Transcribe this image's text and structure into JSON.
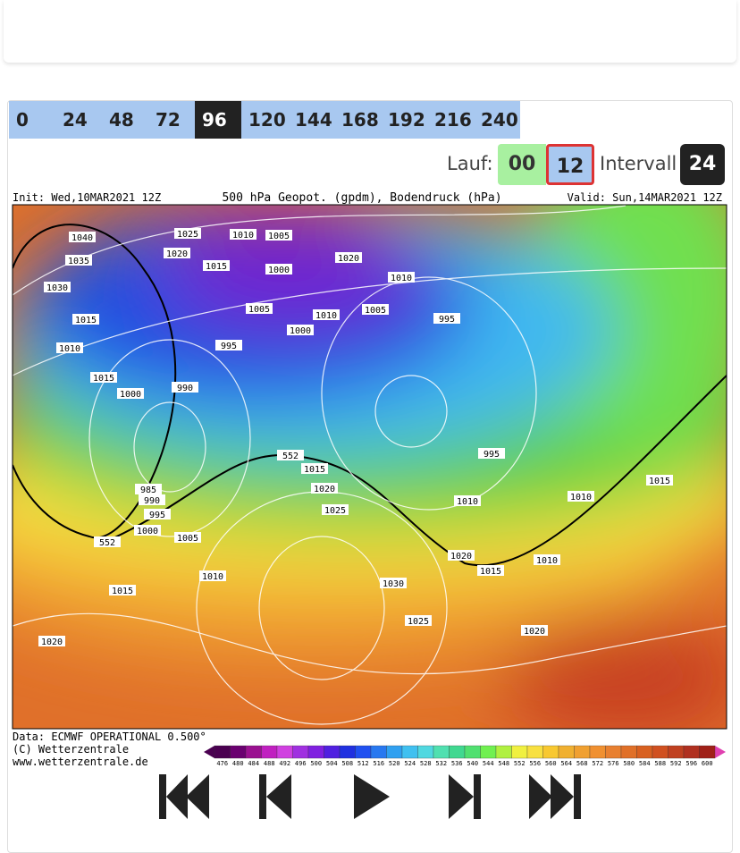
{
  "hours": [
    "0",
    "24",
    "48",
    "72",
    "96",
    "120",
    "144",
    "168",
    "192",
    "216",
    "240"
  ],
  "selected_hour": "96",
  "run": {
    "label": "Lauf:",
    "options": [
      "00",
      "12"
    ],
    "selected": "12"
  },
  "interval": {
    "label": "Intervall",
    "value": "24"
  },
  "map": {
    "init": "Init: Wed,10MAR2021 12Z",
    "title": "500 hPa Geopot. (gpdm), Bodendruck (hPa)",
    "valid": "Valid: Sun,14MAR2021 12Z",
    "isobar_labels": [
      "1040",
      "1035",
      "1030",
      "1025",
      "1020",
      "1015",
      "1010",
      "1005",
      "1000",
      "995",
      "990",
      "985",
      "1015",
      "1010",
      "1005",
      "1000",
      "995",
      "1020",
      "1010",
      "1015",
      "1005",
      "1000",
      "1010",
      "995",
      "1015",
      "1020",
      "1025",
      "1005",
      "1000",
      "995",
      "990",
      "1010",
      "1015",
      "1020",
      "1030",
      "1025",
      "1020",
      "1010",
      "1010",
      "1015",
      "1020",
      "1015",
      "1010",
      "552",
      "552"
    ],
    "scale": [
      476,
      480,
      484,
      488,
      492,
      496,
      500,
      504,
      508,
      512,
      516,
      520,
      524,
      528,
      532,
      536,
      540,
      544,
      548,
      552,
      556,
      560,
      564,
      568,
      572,
      576,
      580,
      584,
      588,
      592,
      596,
      600
    ]
  },
  "footer": [
    "Data: ECMWF OPERATIONAL 0.500°",
    "(C) Wetterzentrale",
    "www.wetterzentrale.de"
  ]
}
